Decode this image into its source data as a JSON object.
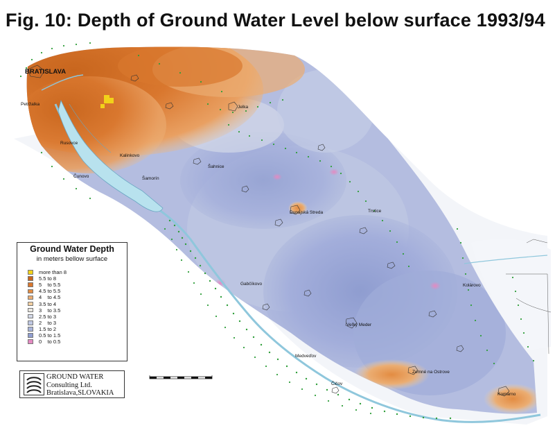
{
  "title": "Fig. 10: Depth of Ground Water Level below surface 1993/94",
  "legend": {
    "title": "Ground Water Depth",
    "subtitle": "in meters bellow surface",
    "items": [
      {
        "label": "more than 8",
        "color": "#f2d21a"
      },
      {
        "label": "5.5 to 8",
        "color": "#c8661e"
      },
      {
        "label": "5    to 5.5",
        "color": "#d9772e"
      },
      {
        "label": "4.5 to 5.5",
        "color": "#e38c42"
      },
      {
        "label": "4    to 4.5",
        "color": "#ebad72"
      },
      {
        "label": "3.5 to 4",
        "color": "#f1cfa2"
      },
      {
        "label": "3    to 3.5",
        "color": "#e9e6e0"
      },
      {
        "label": "2.5 to 3",
        "color": "#d3d9e8"
      },
      {
        "label": "2    to 3",
        "color": "#bec7e2"
      },
      {
        "label": "1.5 to 2",
        "color": "#a9b4da"
      },
      {
        "label": "0.5 to 1.5",
        "color": "#8f9dd0"
      },
      {
        "label": "0    to 0.5",
        "color": "#e48ac2"
      }
    ]
  },
  "places": [
    {
      "name": "BRATISLAVA",
      "type": "city"
    },
    {
      "name": "Petržalka"
    },
    {
      "name": "Rusovce"
    },
    {
      "name": "Čunovo"
    },
    {
      "name": "Kalinkovo"
    },
    {
      "name": "Šamorín"
    },
    {
      "name": "Jelka"
    },
    {
      "name": "Šahnice"
    },
    {
      "name": "Dunajská Streda"
    },
    {
      "name": "Trstice"
    },
    {
      "name": "Gabčíkovo"
    },
    {
      "name": "Kolárovo"
    },
    {
      "name": "Veľký Meder"
    },
    {
      "name": "Medveďov"
    },
    {
      "name": "Čičov"
    },
    {
      "name": "Zemné na Ostrove"
    },
    {
      "name": "Komárno"
    }
  ],
  "logo": {
    "line1": "GROUND WATER",
    "line2": "Consulting Ltd.",
    "line3": "Bratislava,SLOVAKIA"
  },
  "colors": {
    "water": "#b8e2ee",
    "vegetation": "#2f9e3a",
    "background_wash": "#eef1f7"
  }
}
